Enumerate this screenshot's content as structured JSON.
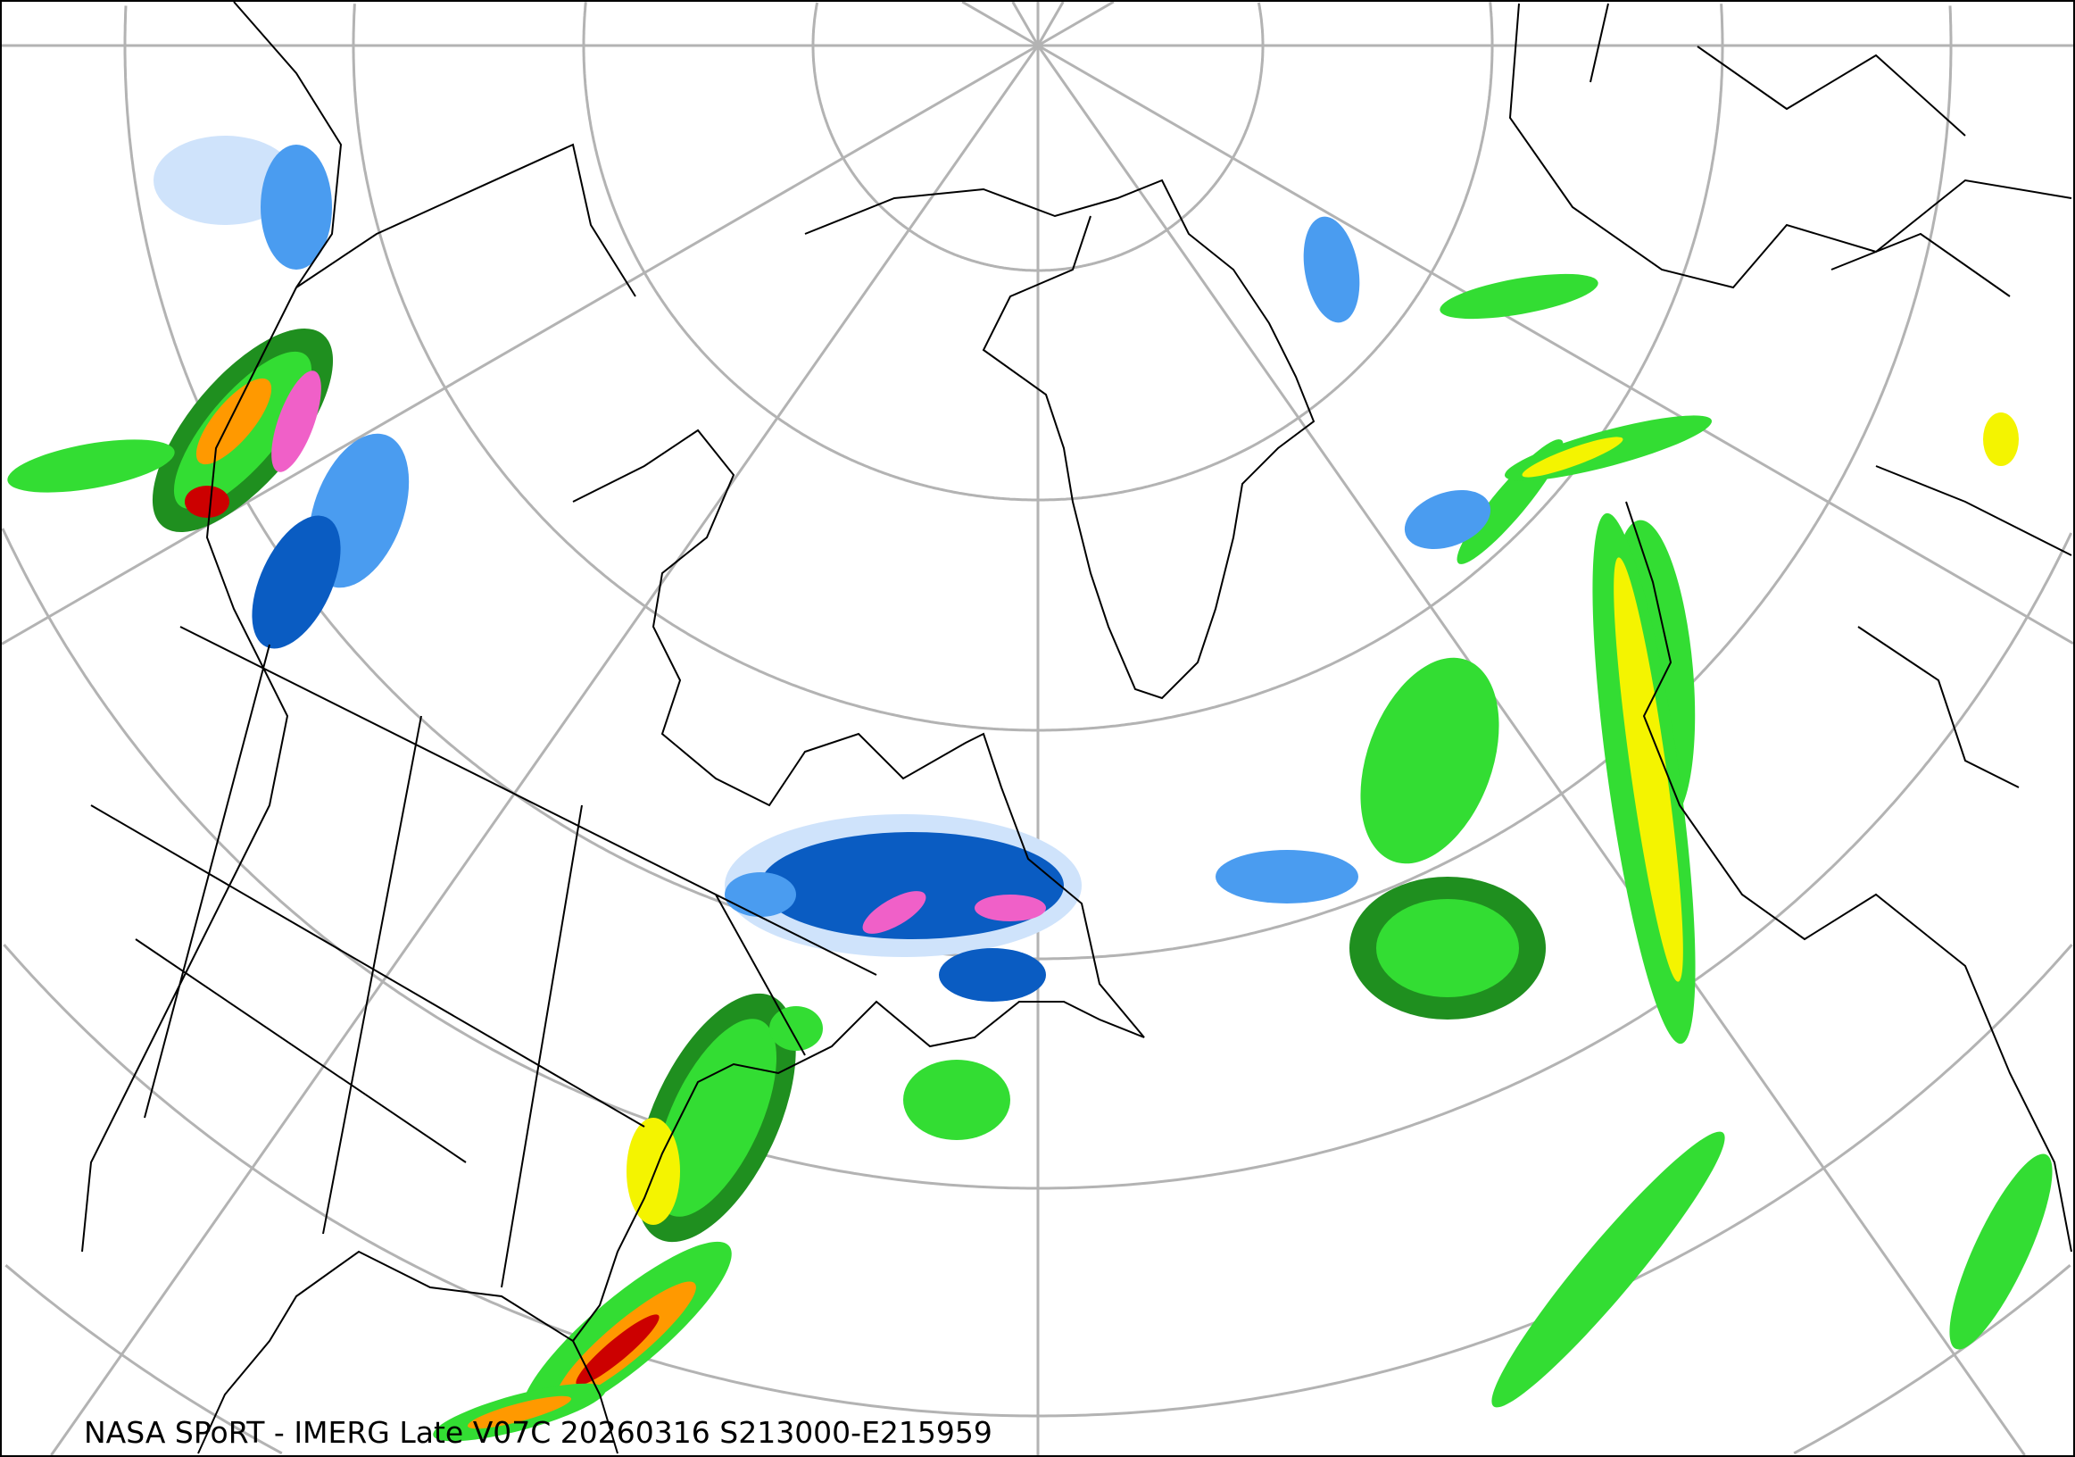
{
  "caption": "NASA SPoRT - IMERG Late V07C 20260316 S213000-E215959",
  "map": {
    "projection": "north-polar-stereographic",
    "graticule_color": "#b3b3b3",
    "coastline_color": "#000000",
    "precip_colors": {
      "snow_light": "#cfe3fb",
      "snow_mid": "#4a9cf0",
      "snow_heavy": "#0a5cc2",
      "snow_extreme": "#f060c8",
      "rain_light": "#1f8f1f",
      "rain_mid": "#33dd33",
      "rain_moderate": "#f4f400",
      "rain_heavy": "#ff9900",
      "rain_extreme": "#cc0000"
    }
  }
}
